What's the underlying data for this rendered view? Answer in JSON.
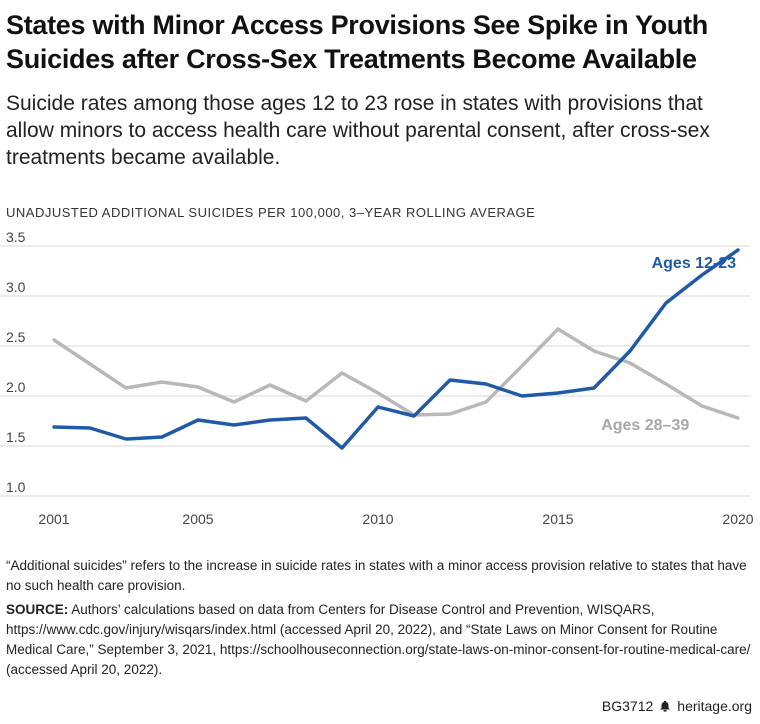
{
  "title": "States with Minor Access Provisions See Spike in Youth Suicides after Cross-Sex Treatments Become Available",
  "subtitle": "Suicide rates among those ages 12 to 23 rose in states with provisions that allow minors to access health care without parental consent, after cross-sex treatments became available.",
  "note": "“Additional suicides” refers to the increase in suicide rates in states with a minor access provision relative to states that have no such health care provision.",
  "source_label": "SOURCE:",
  "source_text": "Authors’ calculations based on data from Centers for Disease Control and Prevention, WISQARS, https://www.cdc.gov/injury/wisqars/index.html (accessed April 20, 2022), and “State Laws on Minor Consent for Routine Medical Care,” September 3, 2021, https://schoolhouseconnection.org/state-laws-on-minor-consent-for-routine-medical-care/ (accessed April 20, 2022).",
  "footer": {
    "code": "BG3712",
    "site": "heritage.org",
    "icon": "bell-icon"
  },
  "colors": {
    "youth": "#1f5aa6",
    "adult": "#b8b8b8",
    "grid": "#d9d9d9"
  },
  "chart_data": {
    "type": "line",
    "ylabel": "UNADJUSTED ADDITIONAL SUICIDES PER 100,000, 3–YEAR ROLLING AVERAGE",
    "xlim": [
      2001,
      2020
    ],
    "ylim": [
      1.0,
      3.5
    ],
    "x_ticks": [
      2001,
      2005,
      2010,
      2015,
      2020
    ],
    "y_ticks": [
      1.0,
      1.5,
      2.0,
      2.5,
      3.0,
      3.5
    ],
    "y_tick_labels": [
      "1.0",
      "1.5",
      "2.0",
      "2.5",
      "3.0",
      "3.5"
    ],
    "grid": true,
    "x": [
      2001,
      2002,
      2003,
      2004,
      2005,
      2006,
      2007,
      2008,
      2009,
      2010,
      2011,
      2012,
      2013,
      2014,
      2015,
      2016,
      2017,
      2018,
      2019,
      2020
    ],
    "series": [
      {
        "name": "Ages 12-23",
        "color": "#1f5aa6",
        "values": [
          1.69,
          1.68,
          1.57,
          1.59,
          1.76,
          1.71,
          1.76,
          1.78,
          1.48,
          1.89,
          1.8,
          2.16,
          2.12,
          2.0,
          2.03,
          2.08,
          2.45,
          2.93,
          3.21,
          3.46
        ]
      },
      {
        "name": "Ages 28–39",
        "color": "#b8b8b8",
        "values": [
          2.56,
          2.32,
          2.08,
          2.14,
          2.09,
          1.94,
          2.11,
          1.95,
          2.23,
          2.03,
          1.81,
          1.82,
          1.94,
          2.3,
          2.67,
          2.45,
          2.33,
          2.12,
          1.9,
          1.78
        ]
      }
    ]
  }
}
